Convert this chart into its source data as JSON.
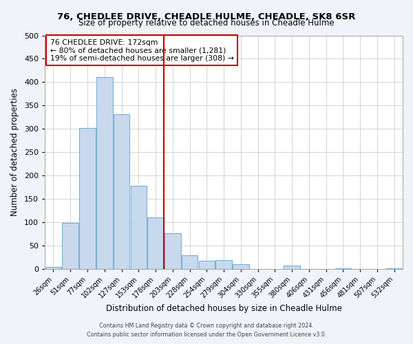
{
  "title": "76, CHEDLEE DRIVE, CHEADLE HULME, CHEADLE, SK8 6SR",
  "subtitle": "Size of property relative to detached houses in Cheadle Hulme",
  "xlabel": "Distribution of detached houses by size in Cheadle Hulme",
  "ylabel": "Number of detached properties",
  "bar_labels": [
    "26sqm",
    "51sqm",
    "77sqm",
    "102sqm",
    "127sqm",
    "153sqm",
    "178sqm",
    "203sqm",
    "228sqm",
    "254sqm",
    "279sqm",
    "304sqm",
    "330sqm",
    "355sqm",
    "380sqm",
    "406sqm",
    "431sqm",
    "456sqm",
    "481sqm",
    "507sqm",
    "532sqm"
  ],
  "bar_values": [
    5,
    99,
    302,
    411,
    332,
    178,
    111,
    76,
    30,
    18,
    19,
    10,
    0,
    0,
    7,
    0,
    0,
    2,
    0,
    0,
    2
  ],
  "bar_color": "#c8d9ee",
  "bar_edge_color": "#7bafd4",
  "vline_x": 6.5,
  "vline_color": "#cc0000",
  "annotation_title": "76 CHEDLEE DRIVE: 172sqm",
  "annotation_line1": "← 80% of detached houses are smaller (1,281)",
  "annotation_line2": "19% of semi-detached houses are larger (308) →",
  "annotation_box_color": "#cc0000",
  "ylim": [
    0,
    500
  ],
  "yticks": [
    0,
    50,
    100,
    150,
    200,
    250,
    300,
    350,
    400,
    450,
    500
  ],
  "footer1": "Contains HM Land Registry data © Crown copyright and database right 2024.",
  "footer2": "Contains public sector information licensed under the Open Government Licence v3.0.",
  "fig_bg_color": "#f0f4fa",
  "plot_bg_color": "#ffffff"
}
